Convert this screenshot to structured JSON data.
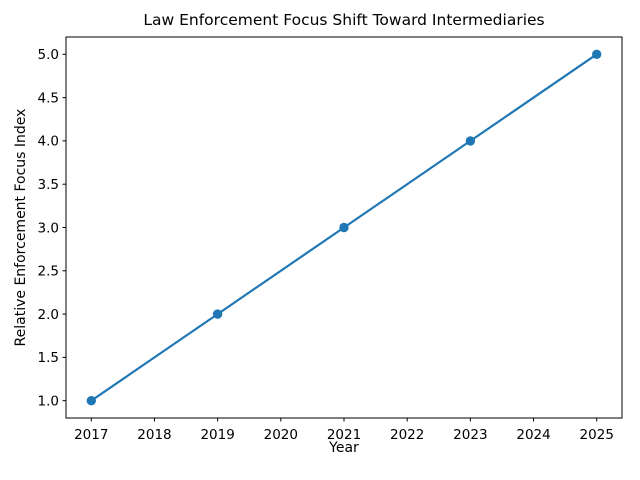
{
  "figure": {
    "background": "#ffffff",
    "text_color": "#000000"
  },
  "chart_data": {
    "type": "line",
    "title": "Law Enforcement Focus Shift Toward Intermediaries",
    "xlabel": "Year",
    "ylabel": "Relative Enforcement Focus Index",
    "x": [
      2017,
      2019,
      2021,
      2023,
      2025
    ],
    "values": [
      1,
      2,
      3,
      4,
      5
    ],
    "line_color": "#1f77b4",
    "marker": "circle",
    "marker_color": "#1f77b4",
    "xlim": [
      2016.6,
      2025.4
    ],
    "ylim": [
      0.8,
      5.2
    ],
    "xticks": [
      2017,
      2018,
      2019,
      2020,
      2021,
      2022,
      2023,
      2024,
      2025
    ],
    "xtick_labels": [
      "2017",
      "2018",
      "2019",
      "2020",
      "2021",
      "2022",
      "2023",
      "2024",
      "2025"
    ],
    "yticks": [
      1.0,
      1.5,
      2.0,
      2.5,
      3.0,
      3.5,
      4.0,
      4.5,
      5.0
    ],
    "ytick_labels": [
      "1.0",
      "1.5",
      "2.0",
      "2.5",
      "3.0",
      "3.5",
      "4.0",
      "4.5",
      "5.0"
    ],
    "grid": false,
    "legend": "none"
  }
}
